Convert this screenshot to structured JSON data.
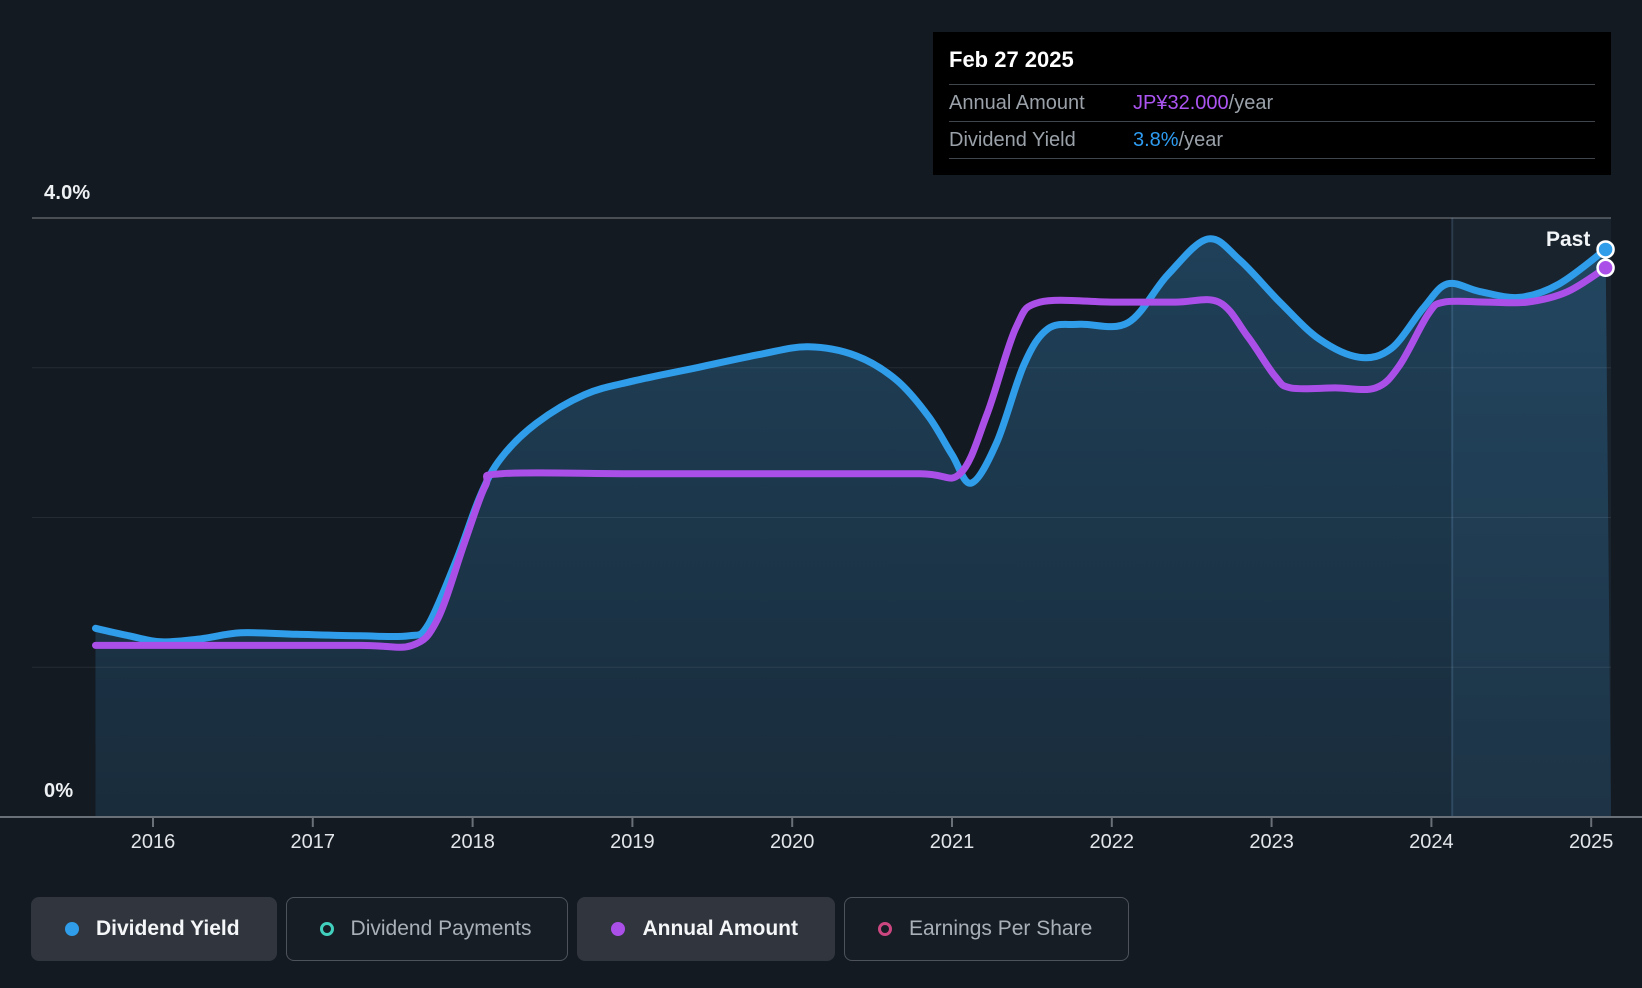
{
  "tooltip": {
    "date": "Feb 27 2025",
    "rows": [
      {
        "label": "Annual Amount",
        "value": "JP¥32.000",
        "suffix": "/year",
        "color": "#ac55f2"
      },
      {
        "label": "Dividend Yield",
        "value": "3.8%",
        "suffix": "/year",
        "color": "#2e9bf0"
      }
    ]
  },
  "past_label": "Past",
  "legend": [
    {
      "label": "Dividend Yield",
      "color": "#2f9de9",
      "style": "filled",
      "active": true
    },
    {
      "label": "Dividend Payments",
      "color": "#41d0bd",
      "style": "hollow",
      "active": false
    },
    {
      "label": "Annual Amount",
      "color": "#ab4fe9",
      "style": "filled",
      "active": true
    },
    {
      "label": "Earnings Per Share",
      "color": "#cc4680",
      "style": "hollow",
      "active": false
    }
  ],
  "chart_data": {
    "type": "area",
    "title": "Dividend yield and annual dividend amount history",
    "x_ticks": [
      "2016",
      "2017",
      "2018",
      "2019",
      "2020",
      "2021",
      "2022",
      "2023",
      "2024",
      "2025"
    ],
    "x_range": [
      2015.64,
      2025.09
    ],
    "y_axis_percent": {
      "min": 0,
      "max": 4,
      "unit": "%",
      "gridlines": [
        1,
        2,
        3,
        4
      ],
      "label_top": "4.0%",
      "label_bottom": "0%"
    },
    "y_axis_amount": {
      "min": 0,
      "max": 34.9,
      "unit": "JP¥"
    },
    "past_divider_year": 2024.13,
    "series": [
      {
        "name": "Dividend Yield",
        "axis": "percent",
        "unit": "%",
        "color": "#2f9de9",
        "fill": true,
        "end_marker": true,
        "points": [
          [
            2015.64,
            1.26
          ],
          [
            2015.85,
            1.21
          ],
          [
            2016.05,
            1.17
          ],
          [
            2016.3,
            1.19
          ],
          [
            2016.55,
            1.23
          ],
          [
            2016.9,
            1.22
          ],
          [
            2017.3,
            1.21
          ],
          [
            2017.6,
            1.21
          ],
          [
            2017.72,
            1.28
          ],
          [
            2017.9,
            1.72
          ],
          [
            2018.05,
            2.15
          ],
          [
            2018.18,
            2.4
          ],
          [
            2018.4,
            2.63
          ],
          [
            2018.7,
            2.82
          ],
          [
            2019.0,
            2.91
          ],
          [
            2019.4,
            3.0
          ],
          [
            2019.8,
            3.09
          ],
          [
            2020.1,
            3.14
          ],
          [
            2020.4,
            3.08
          ],
          [
            2020.65,
            2.92
          ],
          [
            2020.85,
            2.68
          ],
          [
            2021.0,
            2.42
          ],
          [
            2021.12,
            2.23
          ],
          [
            2021.28,
            2.5
          ],
          [
            2021.45,
            3.02
          ],
          [
            2021.6,
            3.26
          ],
          [
            2021.8,
            3.29
          ],
          [
            2022.1,
            3.3
          ],
          [
            2022.35,
            3.62
          ],
          [
            2022.6,
            3.86
          ],
          [
            2022.8,
            3.72
          ],
          [
            2023.05,
            3.44
          ],
          [
            2023.3,
            3.19
          ],
          [
            2023.55,
            3.07
          ],
          [
            2023.75,
            3.13
          ],
          [
            2023.95,
            3.4
          ],
          [
            2024.1,
            3.56
          ],
          [
            2024.3,
            3.51
          ],
          [
            2024.55,
            3.47
          ],
          [
            2024.8,
            3.56
          ],
          [
            2025.09,
            3.79
          ]
        ]
      },
      {
        "name": "Annual Amount",
        "axis": "amount",
        "unit": "JP¥/year",
        "color": "#ab4fe9",
        "fill": false,
        "end_marker": true,
        "points": [
          [
            2015.64,
            10
          ],
          [
            2016.5,
            10
          ],
          [
            2017.3,
            10
          ],
          [
            2017.62,
            10
          ],
          [
            2017.78,
            11.5
          ],
          [
            2017.95,
            16
          ],
          [
            2018.08,
            19.3
          ],
          [
            2018.18,
            20
          ],
          [
            2019.0,
            20
          ],
          [
            2020.0,
            20
          ],
          [
            2020.8,
            20
          ],
          [
            2021.05,
            20
          ],
          [
            2021.22,
            23.5
          ],
          [
            2021.4,
            28.5
          ],
          [
            2021.55,
            30
          ],
          [
            2022.0,
            30
          ],
          [
            2022.4,
            30
          ],
          [
            2022.67,
            30
          ],
          [
            2022.85,
            28
          ],
          [
            2023.02,
            25.7
          ],
          [
            2023.12,
            25
          ],
          [
            2023.4,
            25
          ],
          [
            2023.65,
            25
          ],
          [
            2023.8,
            26.3
          ],
          [
            2023.98,
            29.3
          ],
          [
            2024.08,
            30
          ],
          [
            2024.35,
            30
          ],
          [
            2024.6,
            30
          ],
          [
            2024.85,
            30.6
          ],
          [
            2025.09,
            32
          ]
        ]
      }
    ]
  }
}
